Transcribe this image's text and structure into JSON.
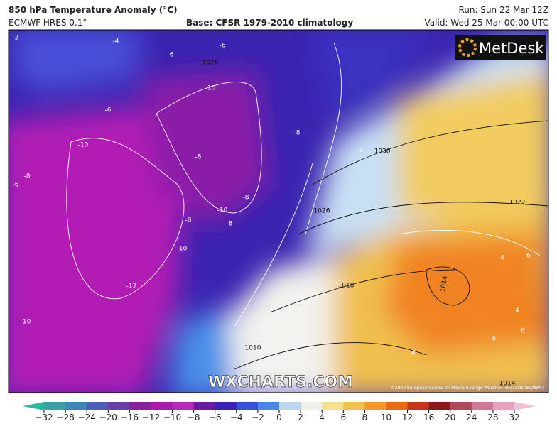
{
  "header": {
    "title": "850 hPa Temperature Anomaly (°C)",
    "model": "ECMWF HRES 0.1°",
    "base": "Base: CFSR 1979-2010 climatology",
    "run": "Run: Sun 22 Mar 12Z",
    "valid": "Valid: Wed 25 Mar 00:00 UTC"
  },
  "map": {
    "logo": "MetDesk",
    "watermark": "WXCHARTS.COM",
    "copyright": "©2020 European Centre for Medium-range Weather Forecasts (ECMWF)",
    "temperature_labels": [
      "-6",
      "-6",
      "-4",
      "-2",
      "-6",
      "-10",
      "-8",
      "-10",
      "-8",
      "-6",
      "-8",
      "-8",
      "-10",
      "-8",
      "-8",
      "-10",
      "-12",
      "-10",
      "-4",
      "4",
      "6",
      "4",
      "6",
      "6",
      "4"
    ],
    "pressure_labels": [
      "1030",
      "1026",
      "1022",
      "1018",
      "1014",
      "1014",
      "1010",
      "1026"
    ]
  },
  "colorbar": {
    "ticks": [
      {
        "value": -32,
        "label": "−32"
      },
      {
        "value": -28,
        "label": "−28"
      },
      {
        "value": -24,
        "label": "−24"
      },
      {
        "value": -20,
        "label": "−20"
      },
      {
        "value": -16,
        "label": "−16"
      },
      {
        "value": -12,
        "label": "−12"
      },
      {
        "value": -10,
        "label": "−10"
      },
      {
        "value": -8,
        "label": "−8"
      },
      {
        "value": -6,
        "label": "−6"
      },
      {
        "value": -4,
        "label": "−4"
      },
      {
        "value": -2,
        "label": "−2"
      },
      0,
      2,
      4,
      6,
      8,
      10,
      12,
      16,
      20,
      24,
      28,
      32
    ],
    "colors": [
      "#2fb8a0",
      "#3aa0a8",
      "#3f86b8",
      "#4c5fb8",
      "#6a3ea8",
      "#8a1f9e",
      "#a81aa8",
      "#b42ab8",
      "#6a1aa0",
      "#3a22b8",
      "#3350d8",
      "#4a86e8",
      "#b8d8f0",
      "#f0f0e8",
      "#f4e08a",
      "#f3c050",
      "#f19a2a",
      "#e86a14",
      "#c8341a",
      "#8a1a1a",
      "#b04a5a",
      "#d07a9a",
      "#e8a0c0",
      "#f0c0d8"
    ]
  }
}
